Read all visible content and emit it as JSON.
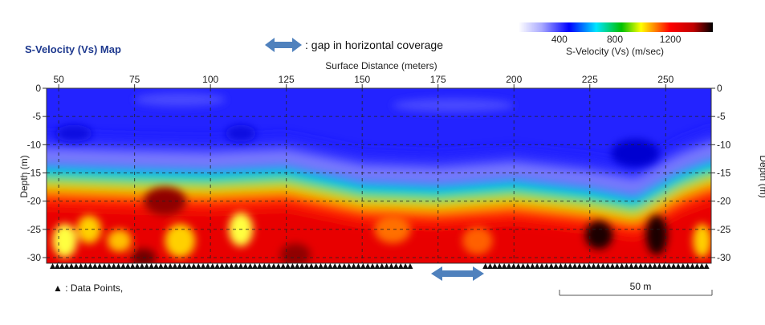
{
  "chart_data": {
    "type": "heatmap",
    "title": "S-Velocity (Vs) Map",
    "xlabel": "Surface Distance (meters)",
    "ylabel_left": "Depth (m)",
    "ylabel_right": "Depth (m)",
    "x_ticks": [
      50,
      75,
      100,
      125,
      150,
      175,
      200,
      225,
      250
    ],
    "y_ticks": [
      0,
      -5,
      -10,
      -15,
      -20,
      -25,
      -30
    ],
    "xlim": [
      46,
      265
    ],
    "ylim": [
      -31,
      0
    ],
    "grid": true,
    "colorbar": {
      "label": "S-Velocity (Vs) (m/sec)",
      "ticks": [
        400,
        800,
        1200
      ],
      "range": [
        100,
        1500
      ],
      "colors": [
        "#ffffff",
        "#0000ff",
        "#00e5ff",
        "#00c000",
        "#ffff00",
        "#ff0000",
        "#000000"
      ]
    },
    "half_space_depth": [
      {
        "x": 46,
        "depth": -15
      },
      {
        "x": 75,
        "depth": -15.5
      },
      {
        "x": 100,
        "depth": -15.8
      },
      {
        "x": 125,
        "depth": -15.2
      },
      {
        "x": 150,
        "depth": -18
      },
      {
        "x": 175,
        "depth": -18.5
      },
      {
        "x": 200,
        "depth": -17.5
      },
      {
        "x": 225,
        "depth": -19
      },
      {
        "x": 240,
        "depth": -20.5
      },
      {
        "x": 255,
        "depth": -16
      },
      {
        "x": 265,
        "depth": -14
      }
    ],
    "gap_x_range": [
      167,
      190
    ],
    "scale_bar_length_m": 50
  },
  "annotations": {
    "gap_note": ": gap in horizontal coverage",
    "data_points_legend": "▲ : Data Points,",
    "scale_bar_label": "50 m"
  }
}
